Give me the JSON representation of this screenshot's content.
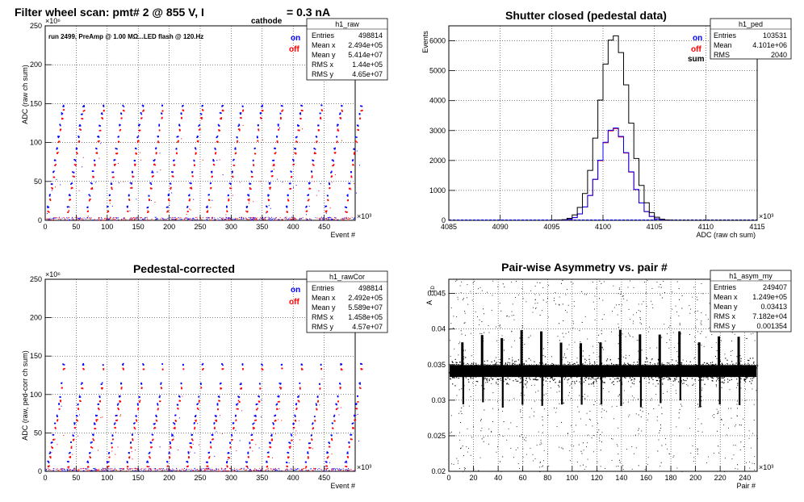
{
  "colors": {
    "on": "#0000ff",
    "off": "#ff0000",
    "sum": "#000000"
  },
  "panels": {
    "raw": {
      "title_main": "Filter wheel scan: pmt#   2 @   855 V, I",
      "title_sub": "cathode",
      "title_tail": "= 0.3 nA",
      "note": "run 2499, PreAmp @ 1.00 MΩ...LED flash @  120.Hz",
      "xlabel": "Event #",
      "ylabel": "ADC (raw ch sum)",
      "xmult": "×10³",
      "ymult": "×10⁶",
      "legend": [
        "on",
        "off"
      ],
      "stats": {
        "name": "h1_raw",
        "rows": [
          [
            "Entries",
            "498814"
          ],
          [
            "Mean x",
            "2.494e+05"
          ],
          [
            "Mean y",
            "5.414e+07"
          ],
          [
            "RMS x",
            "1.44e+05"
          ],
          [
            "RMS y",
            "4.65e+07"
          ]
        ]
      }
    },
    "ped": {
      "title": "Shutter closed (pedestal data)",
      "xlabel": "ADC (raw ch sum)",
      "ylabel": "Events",
      "xmult": "×10³",
      "legend": [
        "on",
        "off",
        "sum"
      ],
      "stats": {
        "name": "h1_ped",
        "rows": [
          [
            "Entries",
            "103531"
          ],
          [
            "Mean",
            "4.101e+06"
          ],
          [
            "RMS",
            "2040"
          ]
        ]
      }
    },
    "cor": {
      "title": "Pedestal-corrected",
      "xlabel": "Event #",
      "ylabel": "ADC (raw, ped-corr ch sum)",
      "xmult": "×10³",
      "ymult": "×10⁶",
      "legend": [
        "on",
        "off"
      ],
      "stats": {
        "name": "h1_rawCor",
        "rows": [
          [
            "Entries",
            "498814"
          ],
          [
            "Mean x",
            "2.492e+05"
          ],
          [
            "Mean y",
            "5.589e+07"
          ],
          [
            "RMS x",
            "1.458e+05"
          ],
          [
            "RMS y",
            "4.57e+07"
          ]
        ]
      }
    },
    "asym": {
      "title": "Pair-wise Asymmetry vs. pair #",
      "xlabel": "Pair #",
      "ylabel": "A",
      "ylabel_sub": "LED",
      "xmult": "×10³",
      "stats": {
        "name": "h1_asym_my",
        "rows": [
          [
            "Entries",
            "249407"
          ],
          [
            "Mean x",
            "1.249e+05"
          ],
          [
            "Mean y",
            "0.03413"
          ],
          [
            "RMS x",
            "7.182e+04"
          ],
          [
            "RMS y",
            "0.001354"
          ]
        ]
      }
    }
  },
  "chart_data": [
    {
      "type": "scatter",
      "id": "raw",
      "xlim": [
        0,
        500
      ],
      "ylim": [
        0,
        250
      ],
      "xticks": [
        0,
        50,
        100,
        150,
        200,
        250,
        300,
        350,
        400,
        450
      ],
      "yticks": [
        0,
        50,
        100,
        150,
        200,
        250
      ],
      "grid": true,
      "step_period": 32,
      "step_levels": [
        2,
        15,
        30,
        45,
        60,
        75,
        90,
        105,
        120,
        135,
        145
      ],
      "series": [
        {
          "name": "on"
        },
        {
          "name": "off"
        }
      ]
    },
    {
      "type": "bar",
      "id": "ped",
      "xlim": [
        4085,
        4115
      ],
      "ylim": [
        0,
        6500
      ],
      "xticks": [
        4085,
        4090,
        4095,
        4100,
        4105,
        4110,
        4115
      ],
      "yticks": [
        0,
        1000,
        2000,
        3000,
        4000,
        5000,
        6000
      ],
      "grid": true,
      "x": [
        4096,
        4097,
        4098,
        4099,
        4100,
        4101,
        4102,
        4103,
        4104,
        4105,
        4106
      ],
      "series": [
        {
          "name": "sum",
          "values": [
            60,
            420,
            1250,
            3200,
            5200,
            6200,
            5200,
            3200,
            1250,
            420,
            60
          ]
        },
        {
          "name": "on",
          "values": [
            30,
            210,
            630,
            1600,
            2620,
            3100,
            2620,
            1600,
            620,
            210,
            30
          ]
        },
        {
          "name": "off",
          "values": [
            30,
            210,
            620,
            1600,
            2580,
            3080,
            2580,
            1600,
            630,
            210,
            30
          ]
        }
      ]
    },
    {
      "type": "scatter",
      "id": "cor",
      "xlim": [
        0,
        500
      ],
      "ylim": [
        0,
        250
      ],
      "xticks": [
        0,
        50,
        100,
        150,
        200,
        250,
        300,
        350,
        400,
        450
      ],
      "yticks": [
        0,
        50,
        100,
        150,
        200,
        250
      ],
      "grid": true,
      "step_period": 32,
      "step_levels": [
        0,
        10,
        22,
        35,
        45,
        60,
        70,
        85,
        95,
        112,
        137
      ],
      "series": [
        {
          "name": "on"
        },
        {
          "name": "off"
        }
      ]
    },
    {
      "type": "scatter",
      "id": "asym",
      "xlim": [
        0,
        250
      ],
      "ylim": [
        0.02,
        0.047
      ],
      "xticks": [
        0,
        20,
        40,
        60,
        80,
        100,
        120,
        140,
        160,
        180,
        200,
        220,
        240
      ],
      "yticks": [
        0.02,
        0.025,
        0.03,
        0.035,
        0.04,
        0.045
      ],
      "grid": true,
      "band_center": 0.0341,
      "band_halfwidth": 0.0012,
      "spike_period": 16
    }
  ]
}
